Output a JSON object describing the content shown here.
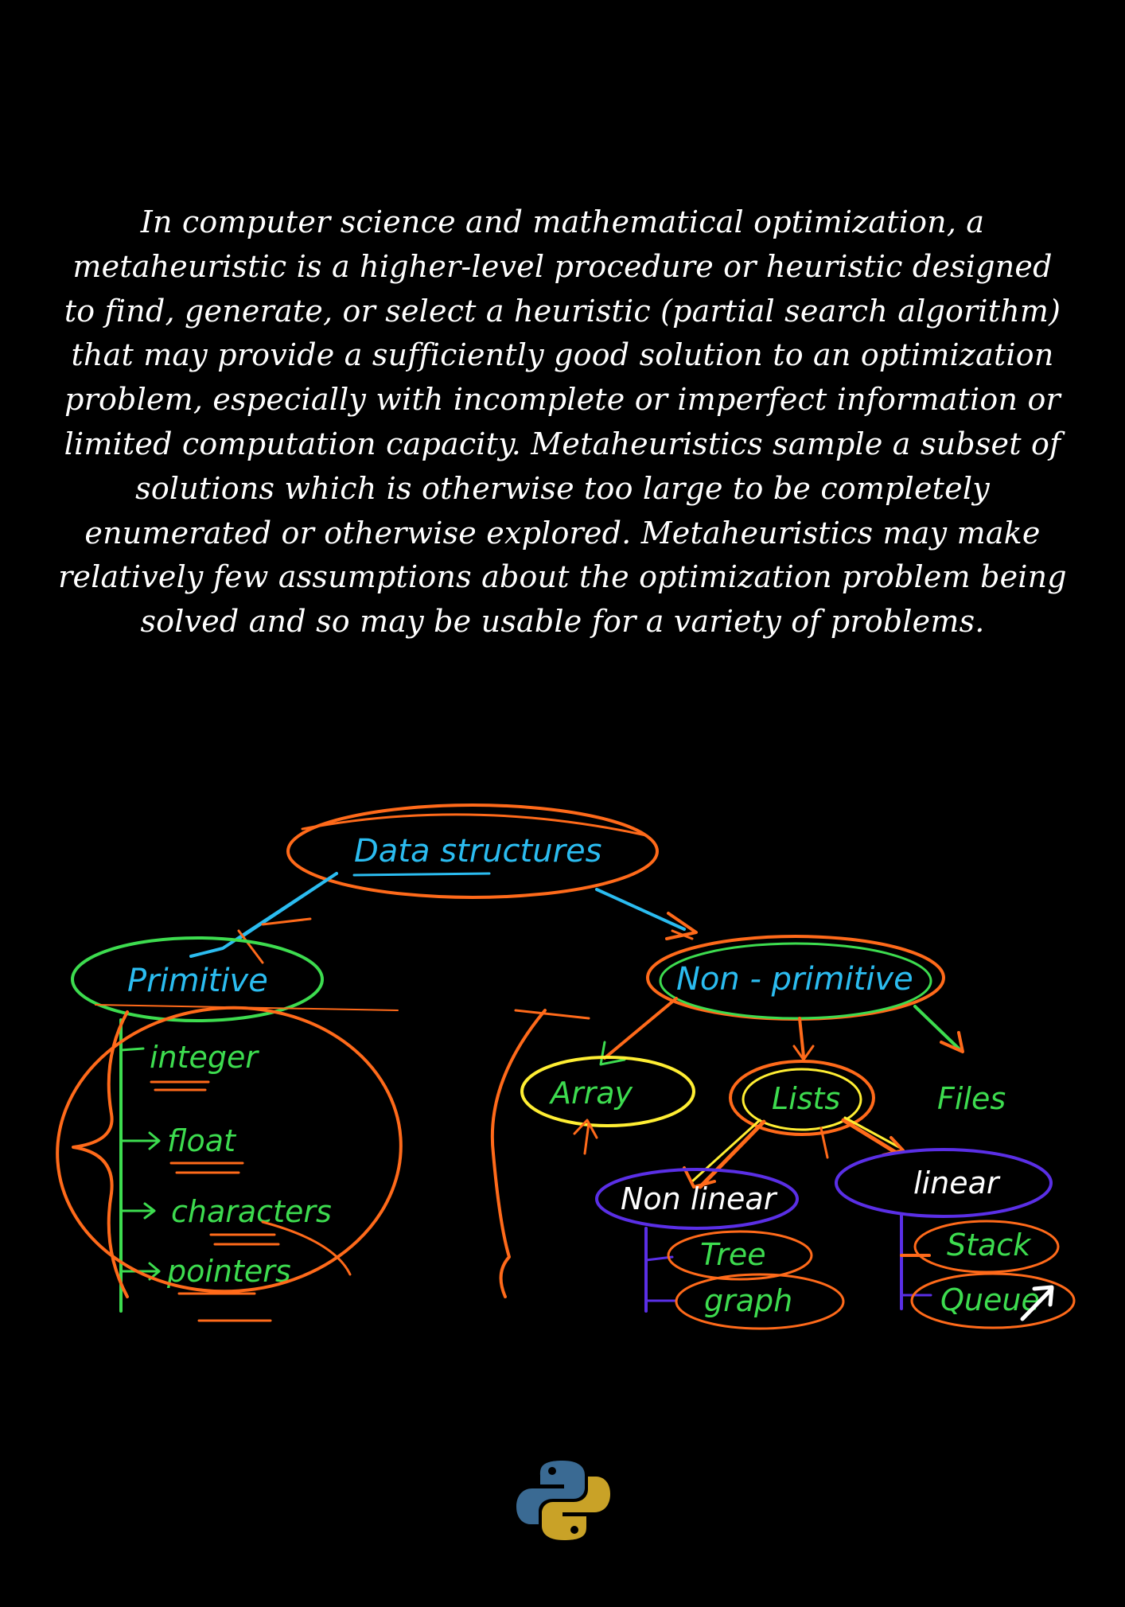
{
  "intro_text": "In computer science and mathematical optimization, a metaheuristic is a higher-level procedure or heuristic designed to find, generate, or select a heuristic (partial search algorithm) that may provide a sufficiently good solution to an optimization problem, especially with incomplete or imperfect information or limited computation capacity. Metaheuristics sample a subset of solutions which is otherwise too large to be completely enumerated or otherwise explored. Metaheuristics may make relatively few assumptions about the optimization problem being solved and so may be usable for a variety of problems.",
  "diagram": {
    "root": "Data structures",
    "primitive": {
      "label": "Primitive",
      "items": [
        "integer",
        "float",
        "characters",
        "pointers"
      ]
    },
    "non_primitive": {
      "label": "Non - primitive",
      "children": [
        "Array",
        "Lists",
        "Files"
      ]
    },
    "lists": {
      "non_linear": {
        "label": "Non linear",
        "items": [
          "Tree",
          "graph"
        ]
      },
      "linear": {
        "label": "linear",
        "items": [
          "Stack",
          "Queue"
        ]
      }
    }
  },
  "colors": {
    "background": "#000000",
    "text": "#ffffff",
    "ink_blue": "#2bbcf0",
    "ink_orange": "#ff6a1a",
    "ink_green": "#3ddc4f",
    "ink_yellow": "#ffee33",
    "ink_purple": "#5a2fe6",
    "python_blue": "#3a6a93",
    "python_yellow": "#c9a227"
  },
  "icons": [
    "python-logo-icon",
    "arrow-cursor-icon"
  ]
}
